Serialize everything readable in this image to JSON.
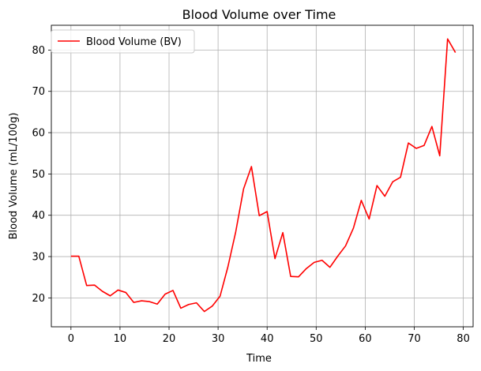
{
  "chart_data": {
    "type": "line",
    "title": "Blood Volume over Time",
    "xlabel": "Time",
    "ylabel": "Blood Volume (mL/100g)",
    "xlim": [
      -4,
      82
    ],
    "ylim": [
      13,
      86
    ],
    "xticks": [
      0,
      10,
      20,
      30,
      40,
      50,
      60,
      70,
      80
    ],
    "yticks": [
      20,
      30,
      40,
      50,
      60,
      70,
      80
    ],
    "grid": true,
    "legend_position": "upper-left",
    "series": [
      {
        "name": "Blood Volume (BV)",
        "color": "#ff0000",
        "x": [
          0,
          1.6,
          3.2,
          4.8,
          6.4,
          8.0,
          9.6,
          11.2,
          12.8,
          14.4,
          16.0,
          17.6,
          19.2,
          20.8,
          22.4,
          24.0,
          25.6,
          27.2,
          28.8,
          30.4,
          32.0,
          33.6,
          35.2,
          36.8,
          38.4,
          40.0,
          41.6,
          43.2,
          44.8,
          46.4,
          48.0,
          49.6,
          51.2,
          52.8,
          54.4,
          56.0,
          57.6,
          59.2,
          60.8,
          62.4,
          64.0,
          65.6,
          67.2,
          68.8,
          70.4,
          72.0,
          73.6,
          75.2,
          76.8,
          78.4
        ],
        "y": [
          30.1,
          30.1,
          23.0,
          23.1,
          21.6,
          20.5,
          21.9,
          21.3,
          18.9,
          19.3,
          19.1,
          18.5,
          20.9,
          21.8,
          17.5,
          18.4,
          18.8,
          16.7,
          18.0,
          20.4,
          27.5,
          36.0,
          46.4,
          51.8,
          39.9,
          40.9,
          29.5,
          35.8,
          25.2,
          25.1,
          27.1,
          28.6,
          29.1,
          27.4,
          30.1,
          32.6,
          36.9,
          43.6,
          39.1,
          47.2,
          44.6,
          48.1,
          49.2,
          57.5,
          56.2,
          56.9,
          61.5,
          54.4,
          82.7,
          79.4
        ]
      }
    ]
  }
}
